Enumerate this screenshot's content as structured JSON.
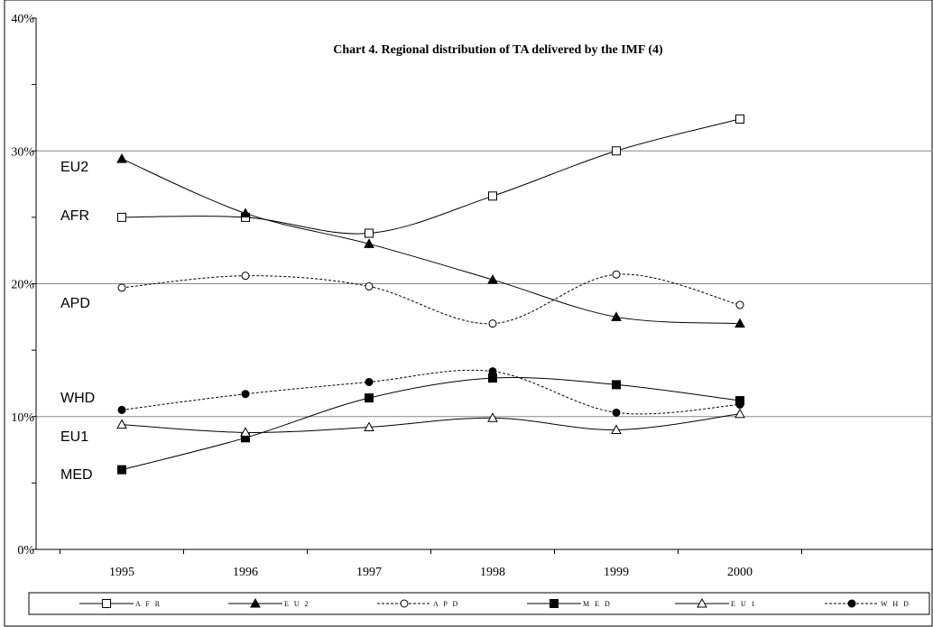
{
  "chart_data": {
    "type": "line",
    "title": "Chart 4. Regional distribution of  TA delivered by the IMF (4)",
    "xlabel": "",
    "ylabel": "",
    "categories": [
      "1995",
      "1996",
      "1997",
      "1998",
      "1999",
      "2000"
    ],
    "ylim": [
      0,
      40
    ],
    "yticks": [
      "0%",
      "10%",
      "20%",
      "30%",
      "40%"
    ],
    "grid": "horizontal",
    "legend_position": "bottom",
    "series": [
      {
        "name": "AFR",
        "legend": "A F R",
        "label": "AFR",
        "values": [
          25.0,
          25.0,
          23.8,
          26.6,
          30.0,
          32.4
        ],
        "marker": "open-square",
        "dash": "solid"
      },
      {
        "name": "EU2",
        "legend": "E U 2",
        "label": "EU2",
        "values": [
          29.4,
          25.3,
          23.0,
          20.3,
          17.5,
          17.0
        ],
        "marker": "filled-triangle",
        "dash": "solid"
      },
      {
        "name": "APD",
        "legend": "A P D",
        "label": "APD",
        "values": [
          19.7,
          20.6,
          19.8,
          17.0,
          20.7,
          18.4
        ],
        "marker": "open-circle",
        "dash": "dashed"
      },
      {
        "name": "MED",
        "legend": "M E D",
        "label": "MED",
        "values": [
          6.0,
          8.4,
          11.4,
          12.9,
          12.4,
          11.2
        ],
        "marker": "filled-square",
        "dash": "solid"
      },
      {
        "name": "EU1",
        "legend": "E U 1",
        "label": "EU1",
        "values": [
          9.4,
          8.8,
          9.2,
          9.9,
          9.0,
          10.2
        ],
        "marker": "open-triangle",
        "dash": "solid"
      },
      {
        "name": "WHD",
        "legend": "W H D",
        "label": "WHD",
        "values": [
          10.5,
          11.7,
          12.6,
          13.4,
          10.3,
          10.9
        ],
        "marker": "filled-circle",
        "dash": "dashed"
      }
    ]
  }
}
